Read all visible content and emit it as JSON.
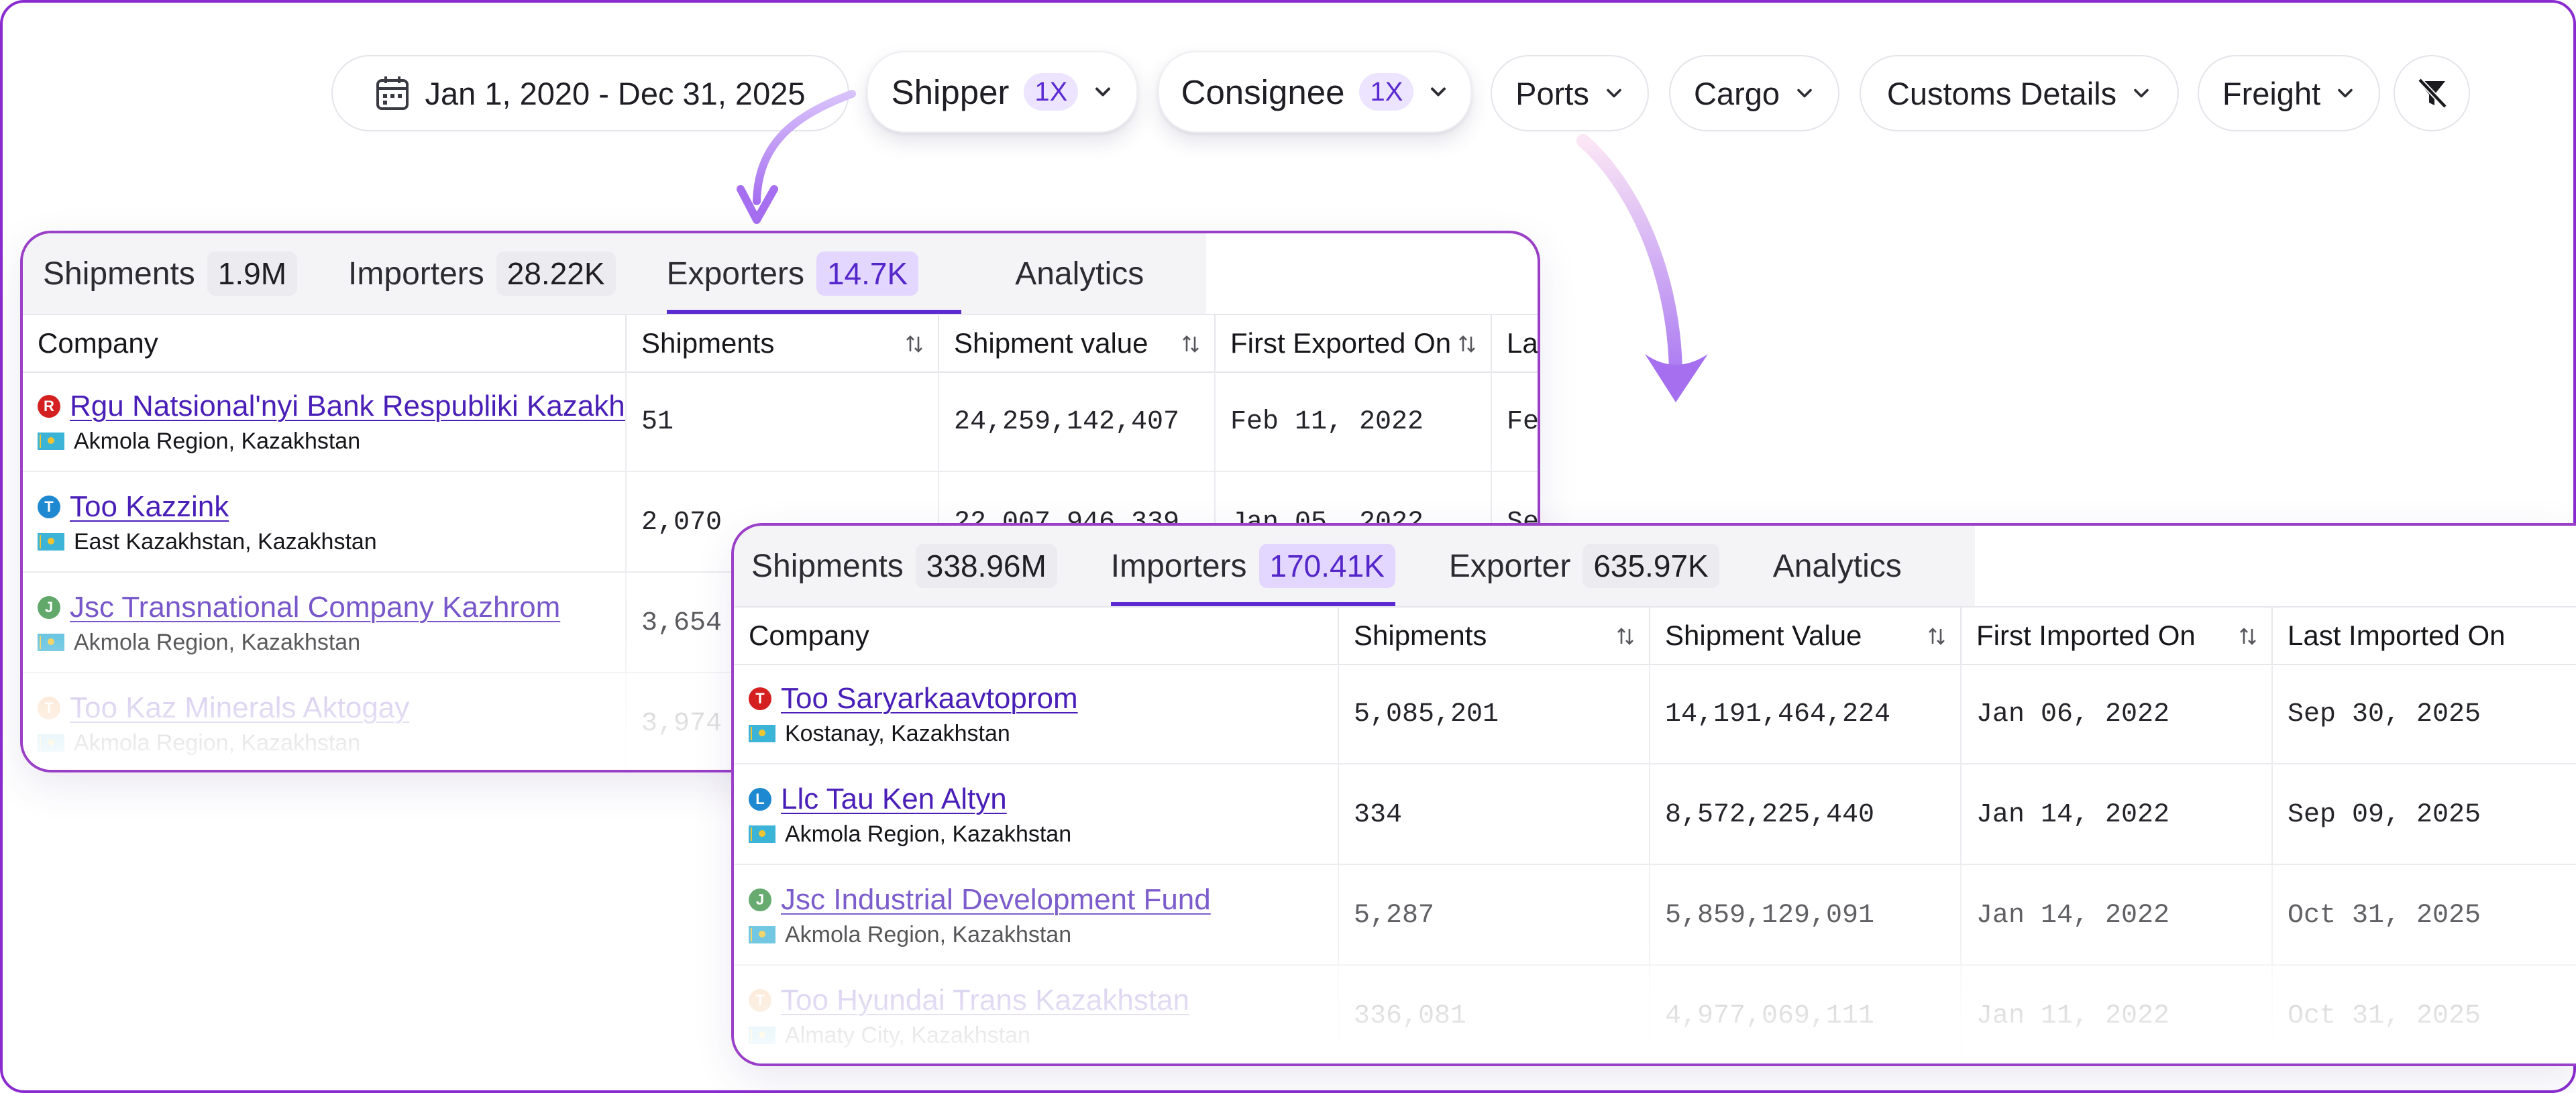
{
  "colors": {
    "accent": "#5b2bd1",
    "frame": "#8a2bd0",
    "arrow": "#b07cf0"
  },
  "filters": {
    "date_range": "Jan 1, 2020 - Dec 31, 2025",
    "shipper": {
      "label": "Shipper",
      "badge": "1X"
    },
    "consignee": {
      "label": "Consignee",
      "badge": "1X"
    },
    "ports": "Ports",
    "cargo": "Cargo",
    "customs": "Customs Details",
    "freight": "Freight",
    "clear_icon": "filter-off-icon"
  },
  "exporters_card": {
    "tabs": [
      {
        "label": "Shipments",
        "count": "1.9M"
      },
      {
        "label": "Importers",
        "count": "28.22K"
      },
      {
        "label": "Exporters",
        "count": "14.7K",
        "active": true
      },
      {
        "label": "Analytics"
      }
    ],
    "columns": [
      "Company",
      "Shipments",
      "Shipment value",
      "First Exported On",
      "La"
    ],
    "rows": [
      {
        "initial": "R",
        "dot": "#d42020",
        "name": "Rgu Natsional'nyi Bank Respubliki Kazakhstan",
        "location": "Akmola Region, Kazakhstan",
        "shipments": "51",
        "value": "24,259,142,407",
        "first": "Feb 11, 2022",
        "last": "Fe"
      },
      {
        "initial": "T",
        "dot": "#1e88d0",
        "name": "Too Kazzink",
        "location": "East Kazakhstan, Kazakhstan",
        "shipments": "2,070",
        "value": "22,007,946,339",
        "first": "Jan 05, 2022",
        "last": "Se"
      },
      {
        "initial": "J",
        "dot": "#2e8b3a",
        "name": "Jsc Transnational Company Kazhrom",
        "location": "Akmola Region, Kazakhstan",
        "shipments": "3,654",
        "value": "",
        "first": "",
        "last": ""
      },
      {
        "initial": "T",
        "dot": "#f09a4a",
        "name": "Too Kaz Minerals Aktogay",
        "location": "Akmola Region, Kazakhstan",
        "shipments": "3,974",
        "value": "",
        "first": "",
        "last": ""
      }
    ]
  },
  "importers_card": {
    "tabs": [
      {
        "label": "Shipments",
        "count": "338.96M"
      },
      {
        "label": "Importers",
        "count": "170.41K",
        "active": true
      },
      {
        "label": "Exporter",
        "count": "635.97K"
      },
      {
        "label": "Analytics"
      }
    ],
    "columns": [
      "Company",
      "Shipments",
      "Shipment Value",
      "First Imported On",
      "Last Imported On"
    ],
    "rows": [
      {
        "initial": "T",
        "dot": "#d42020",
        "name": "Too Saryarkaavtoprom",
        "location": "Kostanay, Kazakhstan",
        "shipments": "5,085,201",
        "value": "14,191,464,224",
        "first": "Jan 06, 2022",
        "last": "Sep 30, 2025"
      },
      {
        "initial": "L",
        "dot": "#1e88d0",
        "name": "Llc Tau Ken Altyn",
        "location": "Akmola Region, Kazakhstan",
        "shipments": "334",
        "value": "8,572,225,440",
        "first": "Jan 14, 2022",
        "last": "Sep 09, 2025"
      },
      {
        "initial": "J",
        "dot": "#2e8b3a",
        "name": "Jsc Industrial Development Fund",
        "location": "Akmola Region, Kazakhstan",
        "shipments": "5,287",
        "value": "5,859,129,091",
        "first": "Jan 14, 2022",
        "last": "Oct 31, 2025"
      },
      {
        "initial": "T",
        "dot": "#f09a4a",
        "name": "Too Hyundai Trans Kazakhstan",
        "location": "Almaty City, Kazakhstan",
        "shipments": "336,081",
        "value": "4,977,069,111",
        "first": "Jan 11, 2022",
        "last": "Oct 31, 2025"
      }
    ]
  }
}
